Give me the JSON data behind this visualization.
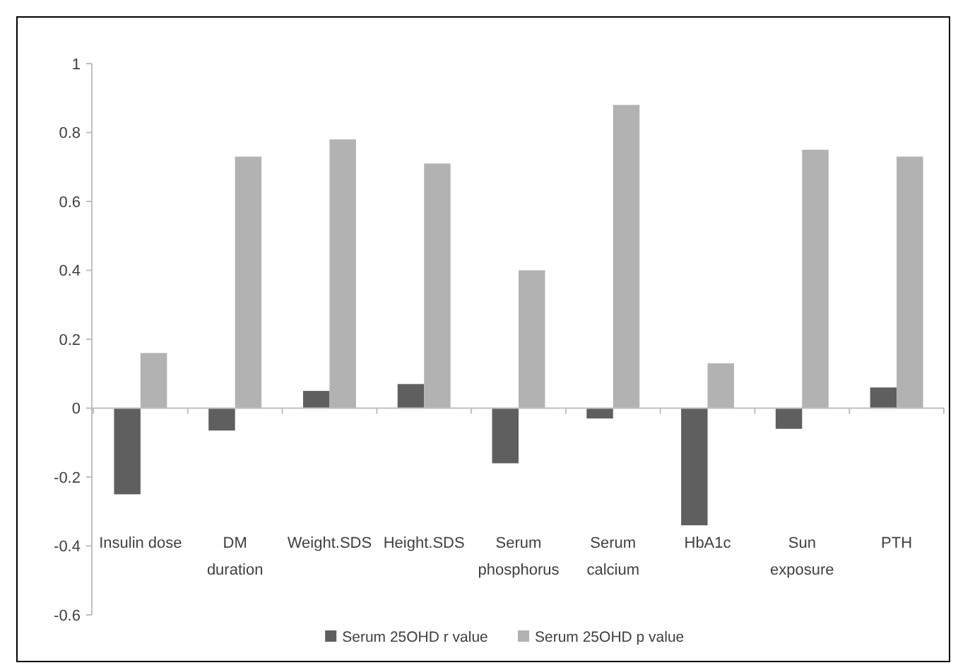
{
  "chart_data": {
    "type": "bar",
    "categories": [
      "Insulin dose",
      "DM duration",
      "Weight.SDS",
      "Height.SDS",
      "Serum phosphorus",
      "Serum calcium",
      "HbA1c",
      "Sun exposure",
      "PTH"
    ],
    "series": [
      {
        "name": "Serum 25OHD r value",
        "color": "#5f5f5f",
        "values": [
          -0.25,
          -0.065,
          0.05,
          0.07,
          -0.16,
          -0.03,
          -0.34,
          -0.06,
          0.06
        ]
      },
      {
        "name": "Serum 25OHD p value",
        "color": "#b2b2b2",
        "values": [
          0.16,
          0.73,
          0.78,
          0.71,
          0.4,
          0.88,
          0.13,
          0.75,
          0.73
        ]
      }
    ],
    "ylim": [
      -0.6,
      1
    ],
    "yticks": [
      1,
      0.8,
      0.6,
      0.4,
      0.2,
      0,
      -0.2,
      -0.4,
      -0.6
    ],
    "legend": "bottom"
  }
}
